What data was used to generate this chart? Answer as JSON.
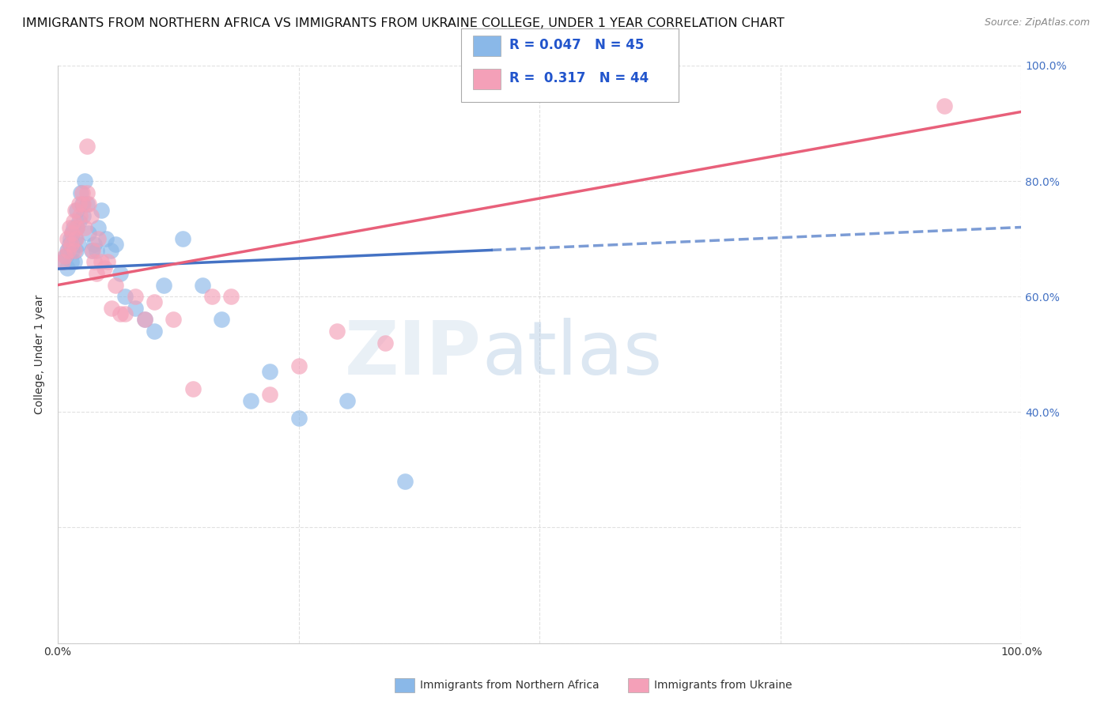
{
  "title": "IMMIGRANTS FROM NORTHERN AFRICA VS IMMIGRANTS FROM UKRAINE COLLEGE, UNDER 1 YEAR CORRELATION CHART",
  "source": "Source: ZipAtlas.com",
  "ylabel": "College, Under 1 year",
  "legend_label_blue": "Immigrants from Northern Africa",
  "legend_label_pink": "Immigrants from Ukraine",
  "R_blue": 0.047,
  "N_blue": 45,
  "R_pink": 0.317,
  "N_pink": 44,
  "xlim": [
    0,
    1.0
  ],
  "ylim": [
    0,
    1.0
  ],
  "background_color": "#ffffff",
  "grid_color": "#cccccc",
  "blue_color": "#8ab8e8",
  "pink_color": "#f4a0b8",
  "line_blue_color": "#4472c4",
  "line_pink_color": "#e8607a",
  "watermark_color": "#d0dff0",
  "title_fontsize": 11.5,
  "source_fontsize": 9,
  "axis_fontsize": 10,
  "blue_x": [
    0.005,
    0.008,
    0.01,
    0.01,
    0.012,
    0.013,
    0.014,
    0.015,
    0.015,
    0.016,
    0.017,
    0.018,
    0.019,
    0.02,
    0.02,
    0.021,
    0.022,
    0.024,
    0.025,
    0.026,
    0.028,
    0.03,
    0.032,
    0.035,
    0.038,
    0.04,
    0.042,
    0.045,
    0.05,
    0.055,
    0.06,
    0.065,
    0.07,
    0.08,
    0.09,
    0.1,
    0.11,
    0.13,
    0.15,
    0.17,
    0.2,
    0.25,
    0.3,
    0.36,
    0.22
  ],
  "blue_y": [
    0.66,
    0.67,
    0.68,
    0.65,
    0.69,
    0.7,
    0.66,
    0.71,
    0.68,
    0.72,
    0.66,
    0.7,
    0.68,
    0.72,
    0.75,
    0.69,
    0.73,
    0.78,
    0.76,
    0.74,
    0.8,
    0.76,
    0.71,
    0.68,
    0.69,
    0.68,
    0.72,
    0.75,
    0.7,
    0.68,
    0.69,
    0.64,
    0.6,
    0.58,
    0.56,
    0.54,
    0.62,
    0.7,
    0.62,
    0.56,
    0.42,
    0.39,
    0.42,
    0.28,
    0.47
  ],
  "pink_x": [
    0.005,
    0.007,
    0.01,
    0.011,
    0.012,
    0.014,
    0.015,
    0.016,
    0.017,
    0.018,
    0.019,
    0.02,
    0.022,
    0.023,
    0.025,
    0.026,
    0.028,
    0.03,
    0.032,
    0.034,
    0.036,
    0.038,
    0.04,
    0.042,
    0.045,
    0.048,
    0.052,
    0.056,
    0.06,
    0.065,
    0.07,
    0.08,
    0.09,
    0.1,
    0.12,
    0.14,
    0.16,
    0.18,
    0.22,
    0.25,
    0.29,
    0.34,
    0.92,
    0.03
  ],
  "pink_y": [
    0.66,
    0.67,
    0.7,
    0.68,
    0.72,
    0.69,
    0.71,
    0.73,
    0.68,
    0.75,
    0.7,
    0.72,
    0.76,
    0.74,
    0.78,
    0.76,
    0.72,
    0.78,
    0.76,
    0.74,
    0.68,
    0.66,
    0.64,
    0.7,
    0.66,
    0.65,
    0.66,
    0.58,
    0.62,
    0.57,
    0.57,
    0.6,
    0.56,
    0.59,
    0.56,
    0.44,
    0.6,
    0.6,
    0.43,
    0.48,
    0.54,
    0.52,
    0.93,
    0.86
  ],
  "blue_line_x0": 0.0,
  "blue_line_y0": 0.648,
  "blue_line_x1": 1.0,
  "blue_line_y1": 0.72,
  "pink_line_x0": 0.0,
  "pink_line_y0": 0.62,
  "pink_line_x1": 1.0,
  "pink_line_y1": 0.92
}
